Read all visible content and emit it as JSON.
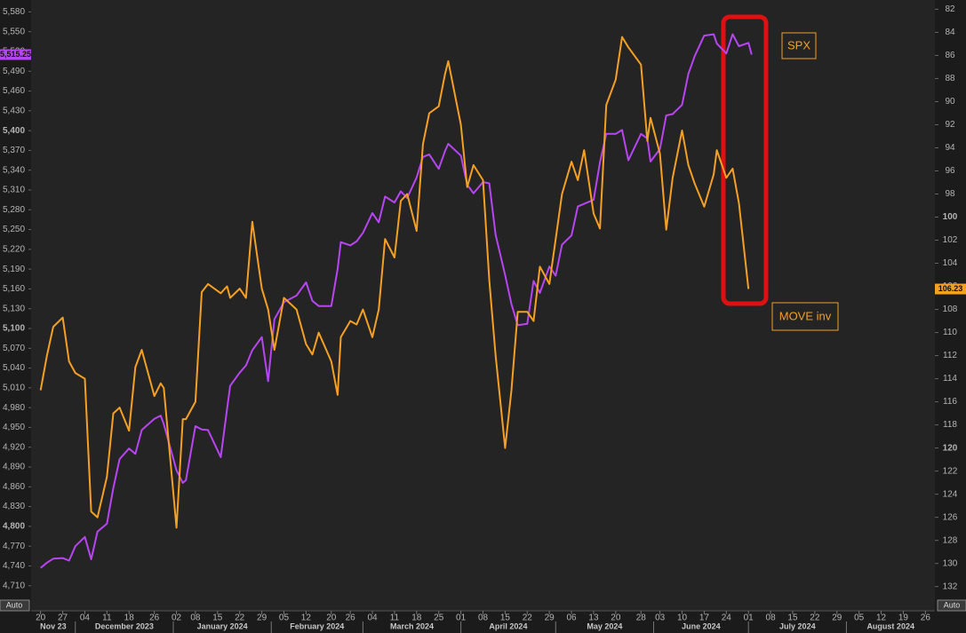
{
  "chart_data": {
    "type": "line",
    "scale_buttons": [
      "Auto",
      "Auto"
    ],
    "x": [
      "2023-11-20",
      "2023-11-22",
      "2023-11-24",
      "2023-11-27",
      "2023-11-29",
      "2023-12-01",
      "2023-12-04",
      "2023-12-06",
      "2023-12-08",
      "2023-12-11",
      "2023-12-13",
      "2023-12-15",
      "2023-12-18",
      "2023-12-20",
      "2023-12-22",
      "2023-12-26",
      "2023-12-28",
      "2023-12-29",
      "2024-01-02",
      "2024-01-04",
      "2024-01-05",
      "2024-01-08",
      "2024-01-10",
      "2024-01-12",
      "2024-01-16",
      "2024-01-18",
      "2024-01-19",
      "2024-01-22",
      "2024-01-24",
      "2024-01-26",
      "2024-01-29",
      "2024-01-31",
      "2024-02-02",
      "2024-02-05",
      "2024-02-07",
      "2024-02-09",
      "2024-02-12",
      "2024-02-14",
      "2024-02-16",
      "2024-02-20",
      "2024-02-22",
      "2024-02-23",
      "2024-02-26",
      "2024-02-28",
      "2024-03-01",
      "2024-03-04",
      "2024-03-06",
      "2024-03-08",
      "2024-03-11",
      "2024-03-13",
      "2024-03-15",
      "2024-03-18",
      "2024-03-20",
      "2024-03-22",
      "2024-03-25",
      "2024-03-27",
      "2024-03-28",
      "2024-04-01",
      "2024-04-03",
      "2024-04-05",
      "2024-04-08",
      "2024-04-10",
      "2024-04-12",
      "2024-04-15",
      "2024-04-17",
      "2024-04-19",
      "2024-04-22",
      "2024-04-24",
      "2024-04-26",
      "2024-04-29",
      "2024-05-01",
      "2024-05-03",
      "2024-05-06",
      "2024-05-08",
      "2024-05-10",
      "2024-05-13",
      "2024-05-15",
      "2024-05-17",
      "2024-05-20",
      "2024-05-22",
      "2024-05-24",
      "2024-05-28",
      "2024-05-30",
      "2024-05-31",
      "2024-06-03",
      "2024-06-05",
      "2024-06-07",
      "2024-06-10",
      "2024-06-12",
      "2024-06-14",
      "2024-06-17",
      "2024-06-20",
      "2024-06-21",
      "2024-06-24",
      "2024-06-26",
      "2024-06-28",
      "2024-07-01",
      "2024-07-02"
    ],
    "series": [
      {
        "name": "SPX",
        "color": "#b845f2",
        "axis": "y",
        "values": [
          4737,
          4745,
          4751,
          4752,
          4748,
          4770,
          4784,
          4750,
          4792,
          4804,
          4858,
          4902,
          4918,
          4910,
          4946,
          4963,
          4968,
          4955,
          4885,
          4866,
          4870,
          4952,
          4947,
          4946,
          4905,
          4978,
          5013,
          5033,
          5044,
          5067,
          5087,
          5020,
          5114,
          5140,
          5145,
          5150,
          5170,
          5142,
          5134,
          5134,
          5190,
          5231,
          5226,
          5232,
          5245,
          5275,
          5261,
          5300,
          5291,
          5308,
          5298,
          5329,
          5360,
          5364,
          5342,
          5369,
          5380,
          5362,
          5318,
          5305,
          5322,
          5320,
          5242,
          5181,
          5137,
          5105,
          5107,
          5172,
          5154,
          5194,
          5180,
          5227,
          5241,
          5285,
          5289,
          5295,
          5352,
          5395,
          5395,
          5401,
          5355,
          5395,
          5388,
          5353,
          5372,
          5423,
          5425,
          5439,
          5486,
          5513,
          5544,
          5546,
          5532,
          5517,
          5546,
          5528,
          5533,
          5515.25
        ],
        "last": {
          "value": 5515.25,
          "label": "5,515.25"
        }
      },
      {
        "name": "MOVE inv",
        "color": "#f5a022",
        "axis": "y2",
        "values": [
          115.0,
          112.0,
          109.5,
          108.7,
          112.5,
          113.5,
          114,
          125.5,
          126,
          122.5,
          117,
          116.5,
          118.5,
          113,
          111.5,
          115.5,
          114.4,
          114.8,
          126.9,
          117.5,
          117.5,
          116,
          106.5,
          105.8,
          106.6,
          106,
          107,
          106.2,
          107,
          100.4,
          106.2,
          108,
          111.5,
          107,
          107.5,
          108,
          111,
          111.9,
          110,
          112.5,
          115.4,
          110.4,
          109,
          109.3,
          108,
          110.4,
          108,
          101.9,
          103.5,
          98.6,
          98,
          101.2,
          93.7,
          91,
          90.4,
          87.6,
          86.5,
          92,
          97.4,
          95.5,
          96.8,
          105.5,
          112,
          120,
          115,
          108.2,
          108.2,
          109,
          104.3,
          105.8,
          101.9,
          98,
          95.2,
          96.8,
          94.2,
          99.7,
          101,
          90.3,
          88.1,
          84.4,
          85.3,
          86.8,
          93.4,
          91.4,
          94.5,
          101.1,
          96.6,
          92.5,
          95.5,
          97.1,
          99.1,
          96.3,
          94.2,
          96.6,
          95.8,
          98.8,
          106.23,
          null
        ],
        "last": {
          "value": 106.23,
          "label": "106.23"
        }
      }
    ],
    "xlim": [
      "2023-11-17",
      "2024-08-29"
    ],
    "xticks": [
      {
        "value": "2023-11-20",
        "label": "20"
      },
      {
        "value": "2023-11-27",
        "label": "27"
      },
      {
        "value": "2023-12-04",
        "label": "04"
      },
      {
        "value": "2023-12-11",
        "label": "11"
      },
      {
        "value": "2023-12-18",
        "label": "18"
      },
      {
        "value": "2023-12-26",
        "label": "26"
      },
      {
        "value": "2024-01-02",
        "label": "02"
      },
      {
        "value": "2024-01-08",
        "label": "08"
      },
      {
        "value": "2024-01-15",
        "label": "15"
      },
      {
        "value": "2024-01-22",
        "label": "22"
      },
      {
        "value": "2024-01-29",
        "label": "29"
      },
      {
        "value": "2024-02-05",
        "label": "05"
      },
      {
        "value": "2024-02-12",
        "label": "12"
      },
      {
        "value": "2024-02-20",
        "label": "20"
      },
      {
        "value": "2024-02-26",
        "label": "26"
      },
      {
        "value": "2024-03-04",
        "label": "04"
      },
      {
        "value": "2024-03-11",
        "label": "11"
      },
      {
        "value": "2024-03-18",
        "label": "18"
      },
      {
        "value": "2024-03-25",
        "label": "25"
      },
      {
        "value": "2024-04-01",
        "label": "01"
      },
      {
        "value": "2024-04-08",
        "label": "08"
      },
      {
        "value": "2024-04-15",
        "label": "15"
      },
      {
        "value": "2024-04-22",
        "label": "22"
      },
      {
        "value": "2024-04-29",
        "label": "29"
      },
      {
        "value": "2024-05-06",
        "label": "06"
      },
      {
        "value": "2024-05-13",
        "label": "13"
      },
      {
        "value": "2024-05-20",
        "label": "20"
      },
      {
        "value": "2024-05-28",
        "label": "28"
      },
      {
        "value": "2024-06-03",
        "label": "03"
      },
      {
        "value": "2024-06-10",
        "label": "10"
      },
      {
        "value": "2024-06-17",
        "label": "17"
      },
      {
        "value": "2024-06-24",
        "label": "24"
      },
      {
        "value": "2024-07-01",
        "label": "01"
      },
      {
        "value": "2024-07-08",
        "label": "08"
      },
      {
        "value": "2024-07-15",
        "label": "15"
      },
      {
        "value": "2024-07-22",
        "label": "22"
      },
      {
        "value": "2024-07-29",
        "label": "29"
      },
      {
        "value": "2024-08-05",
        "label": "05"
      },
      {
        "value": "2024-08-12",
        "label": "12"
      },
      {
        "value": "2024-08-19",
        "label": "19"
      },
      {
        "value": "2024-08-26",
        "label": "26"
      }
    ],
    "month_labels": [
      {
        "value": "2023-11-01",
        "label": "Nov 23"
      },
      {
        "value": "2023-12-01",
        "label": "December 2023"
      },
      {
        "value": "2024-01-01",
        "label": "January 2024"
      },
      {
        "value": "2024-02-01",
        "label": "February 2024"
      },
      {
        "value": "2024-03-01",
        "label": "March 2024"
      },
      {
        "value": "2024-04-01",
        "label": "April 2024"
      },
      {
        "value": "2024-05-01",
        "label": "May 2024"
      },
      {
        "value": "2024-06-01",
        "label": "June 2024"
      },
      {
        "value": "2024-07-01",
        "label": "July 2024"
      },
      {
        "value": "2024-08-01",
        "label": "August 2024"
      }
    ],
    "ylim": [
      4672,
      5598
    ],
    "yticks": [
      {
        "value": 4710,
        "label": "4,710"
      },
      {
        "value": 4740,
        "label": "4,740"
      },
      {
        "value": 4770,
        "label": "4,770"
      },
      {
        "value": 4800,
        "label": "4,800"
      },
      {
        "value": 4830,
        "label": "4,830"
      },
      {
        "value": 4860,
        "label": "4,860"
      },
      {
        "value": 4890,
        "label": "4,890"
      },
      {
        "value": 4920,
        "label": "4,920"
      },
      {
        "value": 4950,
        "label": "4,950"
      },
      {
        "value": 4980,
        "label": "4,980"
      },
      {
        "value": 5010,
        "label": "5,010"
      },
      {
        "value": 5040,
        "label": "5,040"
      },
      {
        "value": 5070,
        "label": "5,070"
      },
      {
        "value": 5100,
        "label": "5,100"
      },
      {
        "value": 5130,
        "label": "5,130"
      },
      {
        "value": 5160,
        "label": "5,160"
      },
      {
        "value": 5190,
        "label": "5,190"
      },
      {
        "value": 5220,
        "label": "5,220"
      },
      {
        "value": 5250,
        "label": "5,250"
      },
      {
        "value": 5280,
        "label": "5,280"
      },
      {
        "value": 5310,
        "label": "5,310"
      },
      {
        "value": 5340,
        "label": "5,340"
      },
      {
        "value": 5370,
        "label": "5,370"
      },
      {
        "value": 5400,
        "label": "5,400"
      },
      {
        "value": 5430,
        "label": "5,430"
      },
      {
        "value": 5460,
        "label": "5,460"
      },
      {
        "value": 5490,
        "label": "5,490"
      },
      {
        "value": 5520,
        "label": "5,520"
      },
      {
        "value": 5550,
        "label": "5,550"
      },
      {
        "value": 5580,
        "label": "5,580"
      }
    ],
    "y2lim": [
      134.1,
      81.2
    ],
    "y2ticks": [
      82,
      84,
      86,
      88,
      90,
      92,
      94,
      96,
      98,
      100,
      102,
      104,
      106,
      108,
      110,
      112,
      114,
      116,
      118,
      120,
      122,
      124,
      126,
      128,
      130,
      132
    ],
    "grid": false
  }
}
